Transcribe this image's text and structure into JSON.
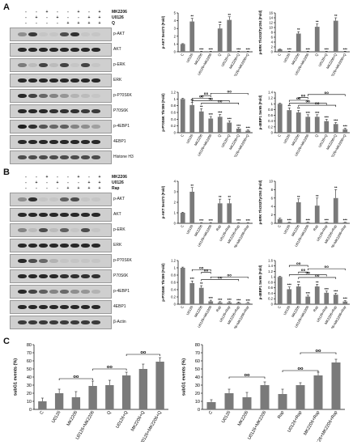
{
  "panels": {
    "A": {
      "letter": "A",
      "treatments": [
        {
          "name": "MK2206",
          "signs": [
            "-",
            "-",
            "+",
            "-",
            "-",
            "+",
            "-",
            "+"
          ]
        },
        {
          "name": "U0126",
          "signs": [
            "-",
            "+",
            "-",
            "+",
            "-",
            "-",
            "+",
            "+"
          ]
        },
        {
          "name": "Q",
          "signs": [
            "-",
            "-",
            "-",
            "-",
            "+",
            "+",
            "+",
            "+"
          ]
        }
      ],
      "blots": [
        {
          "label": "p-AKT",
          "intensity": [
            0.35,
            0.8,
            0.05,
            0.05,
            0.7,
            0.85,
            0.05,
            0.05
          ]
        },
        {
          "label": "AKT",
          "intensity": [
            0.9,
            0.9,
            0.9,
            0.9,
            0.9,
            0.9,
            0.9,
            0.9
          ]
        },
        {
          "label": "p-ERK",
          "intensity": [
            0.45,
            0.1,
            0.75,
            0.1,
            0.75,
            0.05,
            0.75,
            0.05
          ]
        },
        {
          "label": "ERK",
          "intensity": [
            0.9,
            0.9,
            0.9,
            0.9,
            0.9,
            0.9,
            0.9,
            0.9
          ]
        },
        {
          "label": "p-P70S6K",
          "intensity": [
            0.9,
            0.75,
            0.55,
            0.4,
            0.3,
            0.15,
            0.1,
            0.05
          ]
        },
        {
          "label": "P70S6K",
          "intensity": [
            0.9,
            0.9,
            0.9,
            0.85,
            0.85,
            0.85,
            0.8,
            0.8
          ]
        },
        {
          "label": "p-4EBP1",
          "intensity": [
            0.95,
            0.85,
            0.65,
            0.55,
            0.6,
            0.4,
            0.35,
            0.25
          ]
        },
        {
          "label": "4EBP1",
          "intensity": [
            0.9,
            0.9,
            0.9,
            0.9,
            0.9,
            0.9,
            0.9,
            0.9
          ]
        },
        {
          "label": "Histone H3",
          "intensity": [
            0.7,
            0.7,
            0.7,
            0.7,
            0.7,
            0.7,
            0.7,
            0.7
          ]
        }
      ]
    },
    "B": {
      "letter": "B",
      "treatments": [
        {
          "name": "MK2206",
          "signs": [
            "-",
            "-",
            "+",
            "-",
            "-",
            "+",
            "-",
            "+"
          ]
        },
        {
          "name": "U0126",
          "signs": [
            "-",
            "+",
            "-",
            "+",
            "-",
            "-",
            "+",
            "+"
          ]
        },
        {
          "name": "Rap",
          "signs": [
            "-",
            "-",
            "-",
            "-",
            "+",
            "+",
            "+",
            "+"
          ]
        }
      ],
      "blots": [
        {
          "label": "p-AKT",
          "intensity": [
            0.35,
            0.85,
            0.05,
            0.05,
            0.6,
            0.7,
            0.05,
            0.05
          ]
        },
        {
          "label": "AKT",
          "intensity": [
            0.9,
            0.9,
            0.9,
            0.9,
            0.9,
            0.9,
            0.9,
            0.9
          ]
        },
        {
          "label": "p-ERK",
          "intensity": [
            0.4,
            0.1,
            0.7,
            0.1,
            0.6,
            0.05,
            0.7,
            0.05
          ]
        },
        {
          "label": "ERK",
          "intensity": [
            0.9,
            0.9,
            0.9,
            0.9,
            0.9,
            0.9,
            0.9,
            0.9
          ]
        },
        {
          "label": "p-P70S6K",
          "intensity": [
            0.9,
            0.7,
            0.55,
            0.15,
            0.05,
            0.05,
            0.05,
            0.05
          ]
        },
        {
          "label": "P70S6K",
          "intensity": [
            0.9,
            0.9,
            0.9,
            0.9,
            0.85,
            0.85,
            0.85,
            0.85
          ]
        },
        {
          "label": "p-4EBP1",
          "intensity": [
            0.9,
            0.75,
            0.6,
            0.4,
            0.55,
            0.35,
            0.3,
            0.15
          ]
        },
        {
          "label": "4EBP1",
          "intensity": [
            0.9,
            0.9,
            0.9,
            0.9,
            0.9,
            0.9,
            0.9,
            0.9
          ]
        },
        {
          "label": "β-Actin",
          "intensity": [
            0.8,
            0.8,
            0.8,
            0.8,
            0.8,
            0.8,
            0.8,
            0.8
          ]
        }
      ]
    },
    "C": {
      "letter": "C"
    }
  },
  "sig_marker": "**",
  "bracket_marker": "oo",
  "chart_data": [
    {
      "id": "A1",
      "type": "bar",
      "categories": [
        "C",
        "U0126",
        "MK2206",
        "U0126+MK2206",
        "Q",
        "U0126+Q",
        "MK2206+Q",
        "U0126+MK2206+Q"
      ],
      "values": [
        1.0,
        3.9,
        0.05,
        0.05,
        3.0,
        4.1,
        0.05,
        0.05
      ],
      "errors": [
        0.05,
        0.4,
        0.02,
        0.02,
        0.5,
        0.4,
        0.02,
        0.02
      ],
      "marks": [
        "",
        "**",
        "***",
        "***",
        "**",
        "**",
        "***",
        "***"
      ],
      "ylabel": "p-AKT Ser473 (Fold)",
      "ylim": [
        0,
        5
      ],
      "yticks": [
        0,
        1,
        2,
        3,
        4,
        5
      ],
      "brackets": []
    },
    {
      "id": "A2",
      "type": "bar",
      "categories": [
        "C",
        "U0126",
        "MK2206",
        "U0126+MK2206",
        "Q",
        "U0126+Q",
        "MK2206+Q",
        "U0126+MK2206+Q"
      ],
      "values": [
        1.0,
        0.2,
        7.5,
        0.2,
        10.3,
        0.2,
        12.8,
        0.2
      ],
      "errors": [
        0.1,
        0.05,
        0.8,
        0.05,
        1.2,
        0.05,
        1.2,
        0.05
      ],
      "marks": [
        "",
        "***",
        "**",
        "***",
        "**",
        "***",
        "**",
        "***"
      ],
      "ylabel": "p-ERK Thr202/Tyr204 (Fold)",
      "ylim": [
        0,
        16
      ],
      "yticks": [
        0,
        2,
        4,
        6,
        8,
        10,
        12,
        14,
        16
      ],
      "brackets": []
    },
    {
      "id": "A3",
      "type": "bar",
      "categories": [
        "C",
        "U0126",
        "MK2206",
        "U0126+MK2206",
        "Q",
        "U0126+Q",
        "MK2206+Q",
        "U0126+MK2206+Q"
      ],
      "values": [
        1.0,
        0.82,
        0.63,
        0.42,
        0.47,
        0.3,
        0.12,
        0.06
      ],
      "errors": [
        0.02,
        0.08,
        0.08,
        0.06,
        0.07,
        0.05,
        0.03,
        0.02
      ],
      "marks": [
        "",
        "**",
        "**",
        "***",
        "***",
        "***",
        "***",
        "***"
      ],
      "ylabel": "p-P70S6K Thr389 (Fold)",
      "ylim": [
        0,
        1.2
      ],
      "yticks": [
        0,
        0.2,
        0.4,
        0.6,
        0.8,
        1.0,
        1.2
      ],
      "brackets": [
        [
          1,
          3,
          1.02
        ],
        [
          2,
          3,
          1.1
        ],
        [
          3,
          7,
          1.17
        ],
        [
          1,
          5,
          0.95
        ],
        [
          2,
          6,
          0.88
        ]
      ]
    },
    {
      "id": "A4",
      "type": "bar",
      "categories": [
        "C",
        "U0126",
        "MK2206",
        "U0126+MK2206",
        "Q",
        "U0126+Q",
        "MK2206+Q",
        "U0126+MK2206+Q"
      ],
      "values": [
        1.0,
        0.78,
        0.7,
        0.55,
        0.55,
        0.4,
        0.3,
        0.12
      ],
      "errors": [
        0.02,
        0.08,
        0.07,
        0.07,
        0.07,
        0.06,
        0.05,
        0.03
      ],
      "marks": [
        "",
        "**",
        "**",
        "***",
        "***",
        "***",
        "***",
        "***"
      ],
      "ylabel": "p-4EBP1 Ser65 (Fold)",
      "ylim": [
        0,
        1.4
      ],
      "yticks": [
        0,
        0.2,
        0.4,
        0.6,
        0.8,
        1.0,
        1.2,
        1.4
      ],
      "brackets": [
        [
          1,
          3,
          1.12
        ],
        [
          2,
          3,
          1.22
        ],
        [
          3,
          7,
          1.32
        ],
        [
          1,
          5,
          1.02
        ],
        [
          2,
          6,
          0.95
        ]
      ]
    },
    {
      "id": "B1",
      "type": "bar",
      "categories": [
        "C",
        "U0126",
        "MK2206",
        "U0126+MK2206",
        "Rap",
        "U0126+Rap",
        "MK2206+Rap",
        "U0126+MK2206+Rap"
      ],
      "values": [
        1.0,
        3.0,
        0.05,
        0.05,
        1.9,
        1.9,
        0.05,
        0.05
      ],
      "errors": [
        0.05,
        0.4,
        0.02,
        0.02,
        0.4,
        0.4,
        0.02,
        0.02
      ],
      "marks": [
        "",
        "**",
        "***",
        "***",
        "**",
        "**",
        "***",
        "***"
      ],
      "ylabel": "p-AKT Ser473 (Fold)",
      "ylim": [
        0,
        4
      ],
      "yticks": [
        0,
        1,
        2,
        3,
        4
      ],
      "brackets": []
    },
    {
      "id": "B2",
      "type": "bar",
      "categories": [
        "C",
        "U0126",
        "MK2206",
        "U0126+MK2206",
        "Rap",
        "U0126+Rap",
        "MK2206+Rap",
        "U0126+MK2206+Rap"
      ],
      "values": [
        1.0,
        0.2,
        5.0,
        0.2,
        4.2,
        0.2,
        6.0,
        0.2
      ],
      "errors": [
        0.2,
        0.05,
        0.8,
        0.05,
        1.8,
        0.05,
        2.0,
        0.05
      ],
      "marks": [
        "",
        "***",
        "**",
        "***",
        "**",
        "***",
        "**",
        "***"
      ],
      "ylabel": "p-ERK Thr202/Tyr204 (Fold)",
      "ylim": [
        0,
        10
      ],
      "yticks": [
        0,
        2,
        4,
        6,
        8,
        10
      ],
      "brackets": []
    },
    {
      "id": "B3",
      "type": "bar",
      "categories": [
        "C",
        "U0126",
        "MK2206",
        "U0126+MK2206",
        "Rap",
        "U0126+Rap",
        "MK2206+Rap",
        "U0126+MK2206+Rap"
      ],
      "values": [
        1.0,
        0.58,
        0.45,
        0.08,
        0.05,
        0.05,
        0.04,
        0.03
      ],
      "errors": [
        0.02,
        0.06,
        0.06,
        0.03,
        0.02,
        0.02,
        0.02,
        0.02
      ],
      "marks": [
        "",
        "***",
        "**",
        "***",
        "***",
        "***",
        "***",
        "***"
      ],
      "ylabel": "p-P70S6K Thr389 (Fold)",
      "ylim": [
        0,
        1.2
      ],
      "yticks": [
        0,
        0.2,
        0.4,
        0.6,
        0.8,
        1.0,
        1.2
      ],
      "brackets": [
        [
          1,
          3,
          0.95
        ],
        [
          2,
          3,
          0.88
        ],
        [
          3,
          7,
          0.75
        ],
        [
          2,
          6,
          0.68
        ]
      ]
    },
    {
      "id": "B4",
      "type": "bar",
      "categories": [
        "C",
        "U0126",
        "MK2206",
        "U0126+MK2206",
        "Rap",
        "U0126+Rap",
        "MK2206+Rap",
        "U0126+MK2206+Rap"
      ],
      "values": [
        1.0,
        0.55,
        0.65,
        0.28,
        0.65,
        0.42,
        0.35,
        0.1
      ],
      "errors": [
        0.02,
        0.08,
        0.08,
        0.05,
        0.08,
        0.06,
        0.05,
        0.03
      ],
      "marks": [
        "",
        "***",
        "**",
        "***",
        "**",
        "***",
        "***",
        "***"
      ],
      "ylabel": "p-4EBP1 Ser65 (Fold)",
      "ylim": [
        0,
        1.6
      ],
      "yticks": [
        0,
        0.2,
        0.4,
        0.6,
        0.8,
        1.0,
        1.2,
        1.4,
        1.6
      ],
      "brackets": [
        [
          1,
          3,
          1.42
        ],
        [
          3,
          7,
          1.3
        ],
        [
          2,
          3,
          1.18
        ],
        [
          1,
          5,
          1.08
        ],
        [
          2,
          6,
          0.98
        ]
      ]
    },
    {
      "id": "C1",
      "type": "bar",
      "categories": [
        "C",
        "U0126",
        "MK2206",
        "U0126+MK2206",
        "Q",
        "U0126+Q",
        "MK2206+Q",
        "U0126+MK2206+Q"
      ],
      "values": [
        10,
        20,
        15,
        29,
        30,
        42,
        50,
        59
      ],
      "errors": [
        4,
        5,
        7,
        6,
        6,
        4,
        6,
        5
      ],
      "marks": [],
      "ylabel": "subG1 events (%)",
      "ylim": [
        0,
        80
      ],
      "yticks": [
        0,
        10,
        20,
        30,
        40,
        50,
        60,
        70,
        80
      ],
      "brackets": [
        [
          1,
          3,
          38
        ],
        [
          3,
          5,
          50
        ],
        [
          5,
          7,
          68
        ]
      ]
    },
    {
      "id": "C2",
      "type": "bar",
      "categories": [
        "C",
        "U0126",
        "MK2206",
        "U0126+MK2206",
        "Rap",
        "U0126+Rap",
        "MK2206+Rap",
        "U0126+MK2206+Rap"
      ],
      "values": [
        9,
        20,
        15,
        30,
        19,
        30,
        42,
        58
      ],
      "errors": [
        3,
        5,
        6,
        4,
        6,
        3,
        4,
        4
      ],
      "marks": [],
      "ylabel": "subG1 events (%)",
      "ylim": [
        0,
        80
      ],
      "yticks": [
        0,
        10,
        20,
        30,
        40,
        50,
        60,
        70,
        80
      ],
      "brackets": [
        [
          1,
          3,
          40
        ],
        [
          4,
          6,
          48
        ],
        [
          5,
          7,
          70
        ]
      ]
    }
  ]
}
